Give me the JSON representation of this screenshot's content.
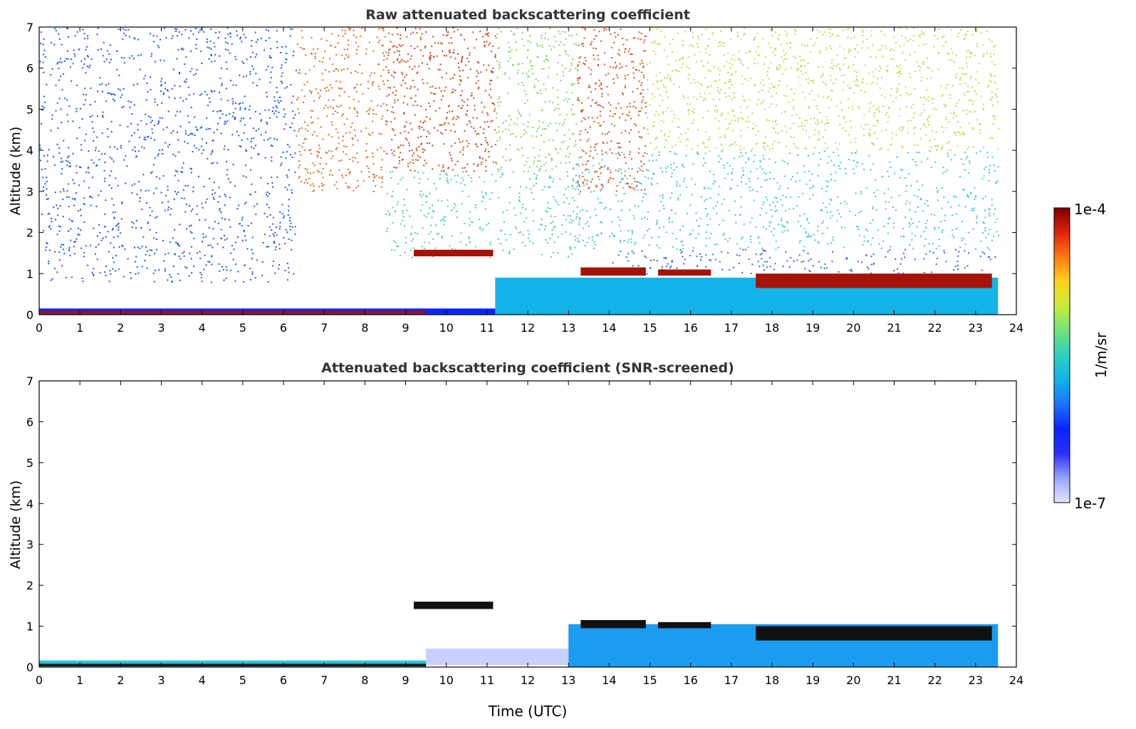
{
  "chart_data": [
    {
      "type": "heatmap",
      "title": "Raw attenuated backscattering coefficient",
      "xlabel": "",
      "ylabel": "Altitude (km)",
      "xlim": [
        0,
        24
      ],
      "ylim": [
        0,
        7
      ],
      "xticks": [
        0,
        1,
        2,
        3,
        4,
        5,
        6,
        7,
        8,
        9,
        10,
        11,
        12,
        13,
        14,
        15,
        16,
        17,
        18,
        19,
        20,
        21,
        22,
        23,
        24
      ],
      "yticks": [
        0,
        1,
        2,
        3,
        4,
        5,
        6,
        7
      ],
      "data_end_time": 23.55,
      "features": [
        {
          "kind": "noise",
          "t0": 0,
          "t1": 6.3,
          "z0": 0.8,
          "z1": 7,
          "color": "#1f4fff",
          "density": 0.35
        },
        {
          "kind": "noise",
          "t0": 6.3,
          "t1": 8.5,
          "z0": 3,
          "z1": 7,
          "color": "#e06a1a",
          "density": 0.45
        },
        {
          "kind": "noise",
          "t0": 8.5,
          "t1": 11.2,
          "z0": 3.5,
          "z1": 7,
          "color": "#d2481a",
          "density": 0.55
        },
        {
          "kind": "noise",
          "t0": 8.5,
          "t1": 13.2,
          "z0": 1.4,
          "z1": 3.5,
          "color": "#49cf9a",
          "density": 0.35
        },
        {
          "kind": "noise",
          "t0": 11.2,
          "t1": 13.2,
          "z0": 3.5,
          "z1": 7,
          "color": "#7fd65e",
          "density": 0.45
        },
        {
          "kind": "noise",
          "t0": 13.2,
          "t1": 14.9,
          "z0": 3,
          "z1": 7,
          "color": "#d9521c",
          "density": 0.55
        },
        {
          "kind": "noise",
          "t0": 14.9,
          "t1": 23.55,
          "z0": 4,
          "z1": 7,
          "color": "#b7df4c",
          "density": 0.45
        },
        {
          "kind": "noise",
          "t0": 13,
          "t1": 23.55,
          "z0": 1.6,
          "z1": 4,
          "color": "#3ec7d4",
          "density": 0.35
        },
        {
          "kind": "noise",
          "t0": 14,
          "t1": 23.55,
          "z0": 1.0,
          "z1": 1.6,
          "color": "#2b62f2",
          "density": 0.35
        },
        {
          "kind": "layer",
          "t0": 11.2,
          "t1": 23.55,
          "z0": 0,
          "z1": 0.9,
          "color": "#11b3e8"
        },
        {
          "kind": "layer",
          "t0": 0,
          "t1": 11.2,
          "z0": 0,
          "z1": 0.15,
          "color": "#0a23ff"
        },
        {
          "kind": "layer",
          "t0": 0,
          "t1": 9.5,
          "z0": 0.02,
          "z1": 0.09,
          "color": "#a51208"
        },
        {
          "kind": "cloud",
          "t0": 9.2,
          "t1": 11.15,
          "z0": 1.42,
          "z1": 1.58,
          "color": "#a51208"
        },
        {
          "kind": "cloud",
          "t0": 13.3,
          "t1": 14.9,
          "z0": 0.95,
          "z1": 1.15,
          "color": "#a51208"
        },
        {
          "kind": "cloud",
          "t0": 15.2,
          "t1": 16.5,
          "z0": 0.95,
          "z1": 1.1,
          "color": "#a51208"
        },
        {
          "kind": "cloud",
          "t0": 17.6,
          "t1": 23.4,
          "z0": 0.65,
          "z1": 1.0,
          "color": "#a51208"
        }
      ]
    },
    {
      "type": "heatmap",
      "title": "Attenuated backscattering coefficient (SNR-screened)",
      "xlabel": "Time (UTC)",
      "ylabel": "Altitude (km)",
      "xlim": [
        0,
        24
      ],
      "ylim": [
        0,
        7
      ],
      "xticks": [
        0,
        1,
        2,
        3,
        4,
        5,
        6,
        7,
        8,
        9,
        10,
        11,
        12,
        13,
        14,
        15,
        16,
        17,
        18,
        19,
        20,
        21,
        22,
        23,
        24
      ],
      "yticks": [
        0,
        1,
        2,
        3,
        4,
        5,
        6,
        7
      ],
      "data_end_time": 23.55,
      "features": [
        {
          "kind": "layer",
          "t0": 13,
          "t1": 23.55,
          "z0": 0,
          "z1": 1.05,
          "color": "#1a9cf0"
        },
        {
          "kind": "layer",
          "t0": 9.5,
          "t1": 13,
          "z0": 0.05,
          "z1": 0.45,
          "color": "#c8d0ff"
        },
        {
          "kind": "layer",
          "t0": 0,
          "t1": 9.5,
          "z0": 0,
          "z1": 0.16,
          "color": "#22c7d8"
        },
        {
          "kind": "layer",
          "t0": 0,
          "t1": 9.5,
          "z0": 0.02,
          "z1": 0.08,
          "color": "#111111"
        },
        {
          "kind": "cloud",
          "t0": 9.2,
          "t1": 11.15,
          "z0": 1.42,
          "z1": 1.6,
          "color": "#111111"
        },
        {
          "kind": "cloud",
          "t0": 13.3,
          "t1": 14.9,
          "z0": 0.95,
          "z1": 1.15,
          "color": "#111111"
        },
        {
          "kind": "cloud",
          "t0": 15.2,
          "t1": 16.5,
          "z0": 0.95,
          "z1": 1.1,
          "color": "#111111"
        },
        {
          "kind": "cloud",
          "t0": 17.6,
          "t1": 23.4,
          "z0": 0.65,
          "z1": 1.0,
          "color": "#111111"
        }
      ]
    }
  ],
  "colorbar": {
    "label": "1/m/sr",
    "max_label": "1e-4",
    "min_label": "1e-7",
    "colors": [
      "#e4e6ff",
      "#9aa2ff",
      "#2a30ff",
      "#0a23ff",
      "#1a74ff",
      "#11b3e8",
      "#2fd1c2",
      "#6fe27a",
      "#c8ec3a",
      "#ffd21a",
      "#ff7a12",
      "#e0220a",
      "#7a0000"
    ]
  }
}
